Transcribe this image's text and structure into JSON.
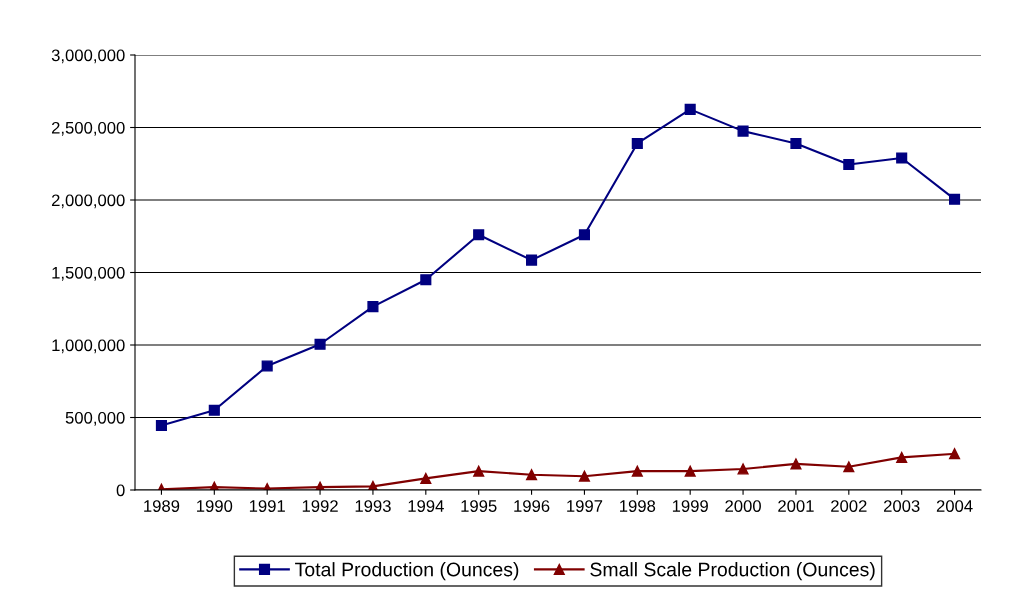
{
  "chart_data": {
    "type": "line",
    "categories": [
      "1989",
      "1990",
      "1991",
      "1992",
      "1993",
      "1994",
      "1995",
      "1996",
      "1997",
      "1998",
      "1999",
      "2000",
      "2001",
      "2002",
      "2003",
      "2004"
    ],
    "series": [
      {
        "name": "Total Production (Ounces)",
        "color": "#000080",
        "marker": "square",
        "values": [
          445000,
          550000,
          855000,
          1005000,
          1265000,
          1450000,
          1760000,
          1585000,
          1760000,
          2390000,
          2625000,
          2475000,
          2390000,
          2245000,
          2290000,
          2005000
        ]
      },
      {
        "name": "Small Scale Production (Ounces)",
        "color": "#800000",
        "marker": "triangle",
        "values": [
          5000,
          20000,
          10000,
          20000,
          25000,
          80000,
          130000,
          105000,
          95000,
          130000,
          130000,
          145000,
          180000,
          160000,
          225000,
          250000
        ]
      }
    ],
    "ylim": [
      0,
      3000000
    ],
    "yticks": [
      {
        "value": 0,
        "label": "0"
      },
      {
        "value": 500000,
        "label": "500,000"
      },
      {
        "value": 1000000,
        "label": "1,000,000"
      },
      {
        "value": 1500000,
        "label": "1,500,000"
      },
      {
        "value": 2000000,
        "label": "2,000,000"
      },
      {
        "value": 2500000,
        "label": "2,500,000"
      },
      {
        "value": 3000000,
        "label": "3,000,000"
      }
    ],
    "grid": "y",
    "legend": "bottom",
    "line_style": "solid"
  }
}
